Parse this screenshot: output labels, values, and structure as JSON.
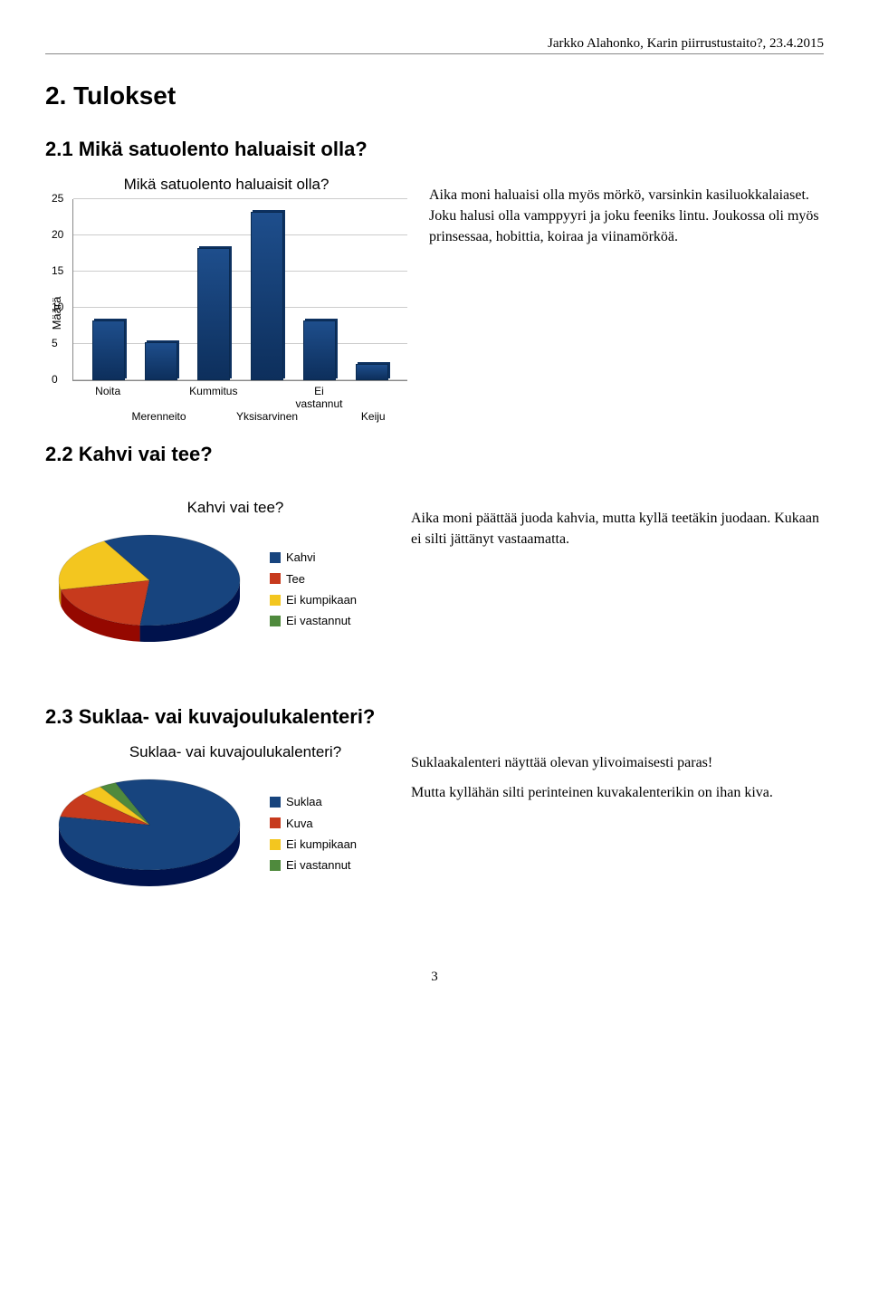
{
  "header": "Jarkko Alahonko, Karin piirrustustaito?, 23.4.2015",
  "h1": "2. Tulokset",
  "section1": {
    "heading": "2.1 Mikä satuolento haluaisit olla?",
    "text": "Aika moni haluaisi olla myös mörkö, varsinkin kasiluokkalaiaset. Joku halusi olla vamppyyri ja joku feeniks lintu. Joukossa oli myös prinsessaa, hobittia, koiraa ja viinamörköä.",
    "bar_chart": {
      "type": "bar",
      "title": "Mikä satuolento haluaisit olla?",
      "y_label": "Määrä",
      "ylim": [
        0,
        25
      ],
      "ytick_step": 5,
      "categories_top": [
        "Noita",
        "Kummitus",
        "Ei vastannut"
      ],
      "categories_bot": [
        "Merenneito",
        "Yksisarvinen",
        "Keiju"
      ],
      "categories": [
        "Noita",
        "Merenneito",
        "Kummitus",
        "Yksisarvinen",
        "Ei vastannut",
        "Keiju"
      ],
      "values": [
        8,
        5,
        18,
        23,
        8,
        2
      ],
      "bar_color": "#1e4e8c",
      "grid_color": "#cccccc",
      "background": "#ffffff",
      "label_fontsize": 13
    }
  },
  "section2": {
    "heading": "2.2 Kahvi vai tee?",
    "text": "Aika moni päättää juoda kahvia, mutta kyllä teetäkin juodaan. Kukaan ei silti jättänyt vastaamatta.",
    "pie_chart": {
      "type": "pie",
      "title": "Kahvi vai tee?",
      "segments": [
        {
          "label": "Kahvi",
          "value": 60,
          "color": "#17447e"
        },
        {
          "label": "Tee",
          "value": 20,
          "color": "#c73a1d"
        },
        {
          "label": "Ei kumpikaan",
          "value": 20,
          "color": "#f3c61f"
        },
        {
          "label": "Ei vastannut",
          "value": 0,
          "color": "#4f8a3d"
        }
      ],
      "start_angle_deg": 240,
      "tilt": 0.5
    }
  },
  "section3": {
    "heading": "2.3 Suklaa- vai kuvajoulukalenteri?",
    "text1": "Suklaakalenteri näyttää olevan ylivoimaisesti paras!",
    "text2": "Mutta kyllähän silti perinteinen kuvakalenterikin on ihan kiva.",
    "pie_chart": {
      "type": "pie",
      "title": "Suklaa- vai kuvajoulukalenteri?",
      "segments": [
        {
          "label": "Suklaa",
          "value": 84,
          "color": "#17447e"
        },
        {
          "label": "Kuva",
          "value": 9,
          "color": "#c73a1d"
        },
        {
          "label": "Ei kumpikaan",
          "value": 4,
          "color": "#f3c61f"
        },
        {
          "label": "Ei vastannut",
          "value": 3,
          "color": "#4f8a3d"
        }
      ],
      "start_angle_deg": 248,
      "tilt": 0.5
    }
  },
  "page_number": "3"
}
